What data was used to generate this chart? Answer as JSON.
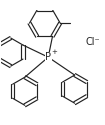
{
  "bg_color": "#ffffff",
  "line_color": "#222222",
  "line_width": 0.85,
  "text_color": "#222222",
  "Cl_label": "Cl⁻",
  "P_label": "P",
  "plus_label": "+",
  "figsize": [
    1.05,
    1.25
  ],
  "dpi": 100,
  "xlim": [
    -1.1,
    1.3
  ],
  "ylim": [
    -1.35,
    1.1
  ]
}
